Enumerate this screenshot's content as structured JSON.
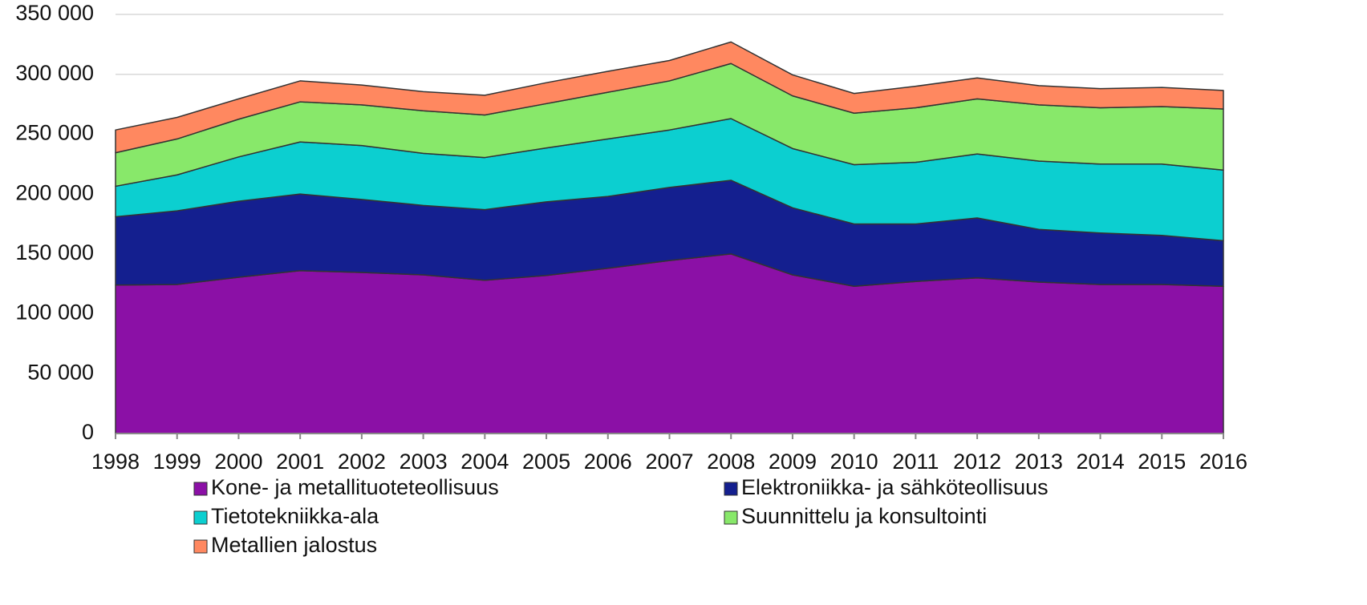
{
  "chart_data": {
    "type": "stacked_area",
    "categories": [
      "1998",
      "1999",
      "2000",
      "2001",
      "2002",
      "2003",
      "2004",
      "2005",
      "2006",
      "2007",
      "2008",
      "2009",
      "2010",
      "2011",
      "2012",
      "2013",
      "2014",
      "2015",
      "2016"
    ],
    "series": [
      {
        "name": "Kone- ja metallituoteteollisuus",
        "color": "#8b10a6",
        "values": [
          124000,
          124500,
          130500,
          136000,
          134500,
          132500,
          128000,
          132000,
          138000,
          144500,
          150000,
          132500,
          123000,
          127000,
          130000,
          126500,
          124500,
          124500,
          123000
        ]
      },
      {
        "name": "Elektroniikka- ja sähköteollisuus",
        "color": "#141f8f",
        "values": [
          57000,
          61500,
          63500,
          64000,
          61000,
          58000,
          59000,
          61500,
          60000,
          61000,
          61500,
          56000,
          52000,
          48000,
          50000,
          44000,
          43000,
          41000,
          38000
        ]
      },
      {
        "name": "Tietotekniikka-ala",
        "color": "#0ccfd0",
        "values": [
          25500,
          30000,
          37000,
          43500,
          45000,
          43500,
          43500,
          45000,
          48000,
          48000,
          51500,
          49500,
          49500,
          51500,
          53500,
          57000,
          57500,
          59500,
          59000
        ]
      },
      {
        "name": "Suunnittelu ja konsultointi",
        "color": "#88e86a",
        "values": [
          28000,
          30000,
          31500,
          33500,
          34000,
          35500,
          35500,
          37000,
          39000,
          41000,
          46000,
          44000,
          43000,
          45500,
          46000,
          47000,
          47000,
          48000,
          51000
        ]
      },
      {
        "name": "Metallien jalostus",
        "color": "#ff8860",
        "values": [
          19000,
          18000,
          17000,
          17500,
          16500,
          16000,
          16500,
          17500,
          17500,
          17000,
          18000,
          17500,
          16500,
          18000,
          17500,
          16000,
          16000,
          16000,
          15500
        ]
      }
    ],
    "ylim": [
      0,
      350000
    ],
    "yticks": [
      0,
      {
        "value": 50000,
        "label": "50 000"
      },
      {
        "value": 100000,
        "label": "100 000"
      },
      {
        "value": 150000,
        "label": "150 000"
      },
      {
        "value": 200000,
        "label": "200 000"
      },
      {
        "value": 250000,
        "label": "250 000"
      },
      {
        "value": 300000,
        "label": "300 000"
      },
      {
        "value": 350000,
        "label": "350 000"
      }
    ],
    "grid": true,
    "legend": "bottom"
  }
}
